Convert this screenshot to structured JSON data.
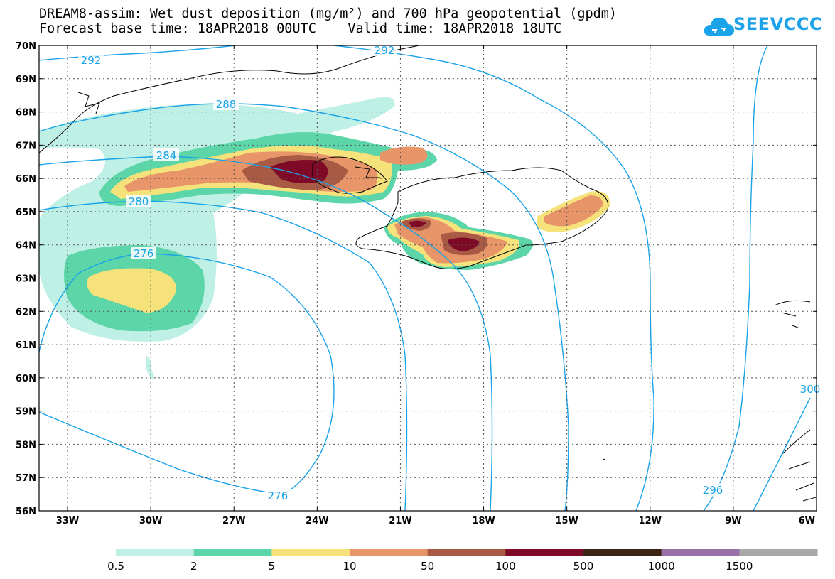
{
  "title_line1": "DREAM8-assim: Wet dust deposition (mg/m²) and 700 hPa geopotential (gpdm)",
  "title_line2": "Forecast base time: 18APR2018 00UTC    Valid time: 18APR2018 18UTC",
  "logo_text": "SEEVCCC",
  "map": {
    "lat_labels": [
      "70N",
      "69N",
      "68N",
      "67N",
      "66N",
      "65N",
      "64N",
      "63N",
      "62N",
      "61N",
      "60N",
      "59N",
      "58N",
      "57N",
      "56N"
    ],
    "lon_labels": [
      "33W",
      "30W",
      "27W",
      "24W",
      "21W",
      "18W",
      "15W",
      "12W",
      "9W",
      "6W"
    ],
    "contour_labels": [
      "292",
      "292",
      "288",
      "284",
      "280",
      "276",
      "276",
      "296",
      "300"
    ],
    "contour_color": "#1aa3e8"
  },
  "colorbar": {
    "labels": [
      "0.5",
      "2",
      "5",
      "10",
      "50",
      "100",
      "500",
      "1000",
      "1500"
    ],
    "colors": [
      "#bff0e6",
      "#5cd6a8",
      "#f5e27a",
      "#e8956a",
      "#a85a44",
      "#7e0a28",
      "#3a2414",
      "#9a70a8",
      "#a8a8a8"
    ]
  }
}
